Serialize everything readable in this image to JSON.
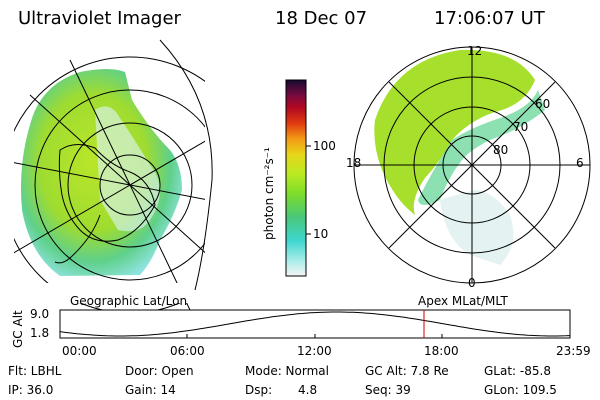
{
  "header": {
    "instrument": "Ultraviolet Imager",
    "date": "18 Dec 07",
    "time": "17:06:07 UT"
  },
  "colorbar": {
    "unit_label": "photon cm⁻²s⁻¹",
    "ticks": [
      "100",
      "10"
    ]
  },
  "panels": {
    "left_label": "Geographic Lat/Lon",
    "right_label": "Apex MLat/MLT"
  },
  "polar_plot": {
    "mlt_labels": {
      "top": "12",
      "left": "18",
      "right": "6",
      "bottom": "0"
    },
    "lat_labels": [
      "60",
      "70",
      "80"
    ]
  },
  "altitude_plot": {
    "axis_title": "GC Alt",
    "y_ticks": [
      "9.0",
      "1.8"
    ],
    "x_ticks": [
      "00:00",
      "06:00",
      "12:00",
      "18:00",
      "23:59"
    ],
    "marker_color": "#cc0000"
  },
  "info": {
    "flt": "Flt: LBHL",
    "door": "Door: Open",
    "mode": "Mode: Normal",
    "gcalt": "GC Alt: 7.8 Re",
    "glat": "GLat: -85.8",
    "ip": "IP: 36.0",
    "gain": "Gain: 14",
    "dsp_label": "Dsp:",
    "dsp_value": "4.8",
    "seq": "Seq: 39",
    "glon": "GLon: 109.5"
  }
}
